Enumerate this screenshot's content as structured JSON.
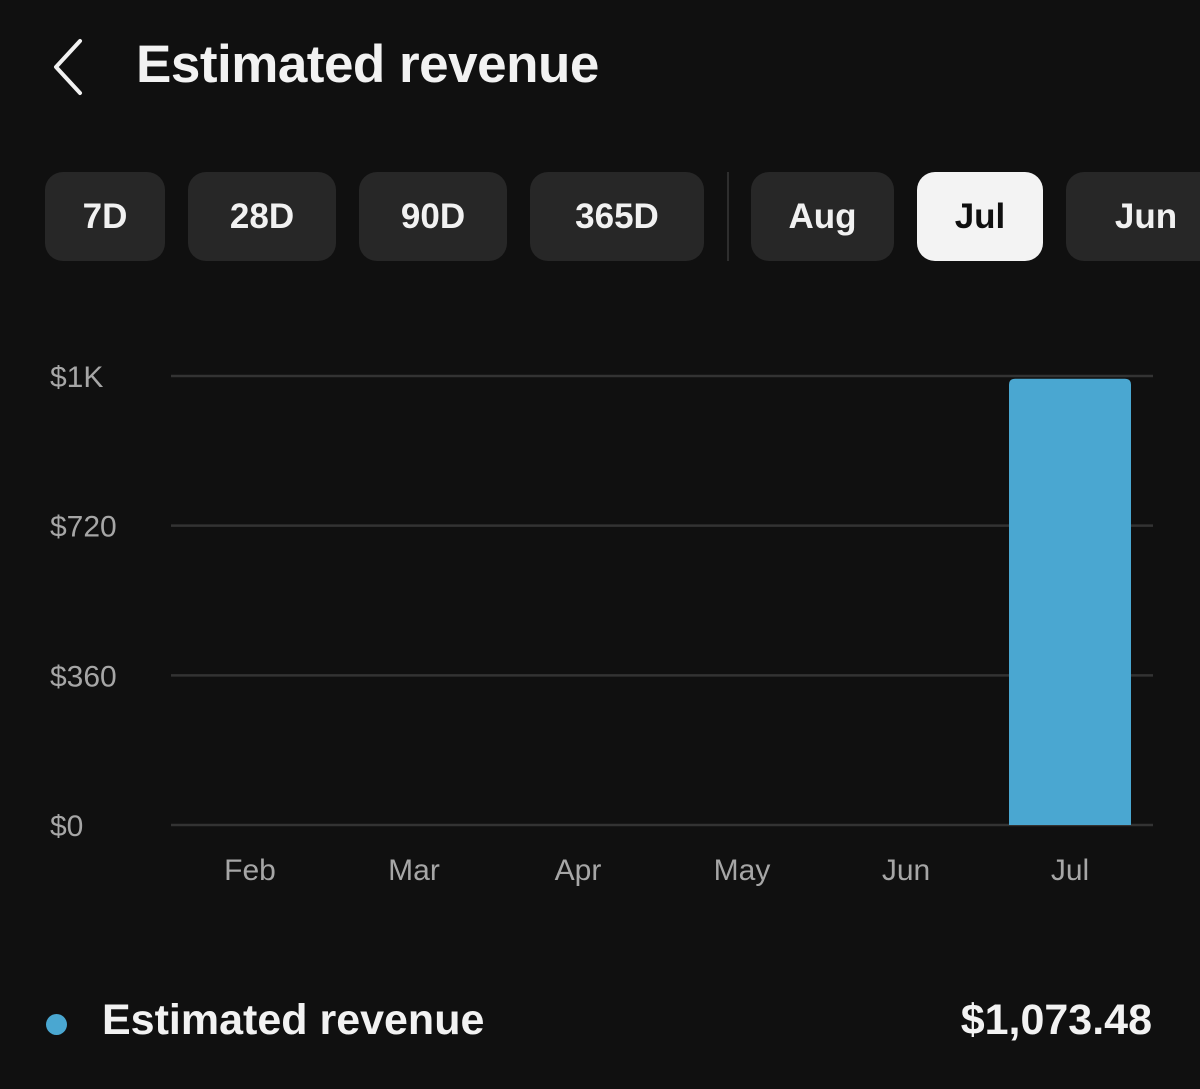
{
  "header": {
    "title": "Estimated revenue",
    "back_icon": "chevron-left-icon"
  },
  "filters": {
    "items": [
      {
        "label": "7D",
        "selected": false
      },
      {
        "label": "28D",
        "selected": false
      },
      {
        "label": "90D",
        "selected": false
      },
      {
        "label": "365D",
        "selected": false
      },
      {
        "label": "Aug",
        "selected": false
      },
      {
        "label": "Jul",
        "selected": true
      },
      {
        "label": "Jun",
        "selected": false
      }
    ]
  },
  "chart_data": {
    "type": "bar",
    "title": "",
    "xlabel": "",
    "ylabel": "",
    "categories": [
      "Feb",
      "Mar",
      "Apr",
      "May",
      "Jun",
      "Jul"
    ],
    "values": [
      0,
      0,
      0,
      0,
      0,
      1073.48
    ],
    "ylim": [
      0,
      1080
    ],
    "y_ticks": [
      {
        "value": 0,
        "label": "$0"
      },
      {
        "value": 360,
        "label": "$360"
      },
      {
        "value": 720,
        "label": "$720"
      },
      {
        "value": 1080,
        "label": "$1K"
      }
    ],
    "grid": true,
    "bar_color": "#4aa7d1",
    "grid_color": "#333333",
    "tick_label_color": "#a6a6a6"
  },
  "legend": {
    "label": "Estimated revenue",
    "value": "$1,073.48",
    "color": "#4aa7d1"
  }
}
